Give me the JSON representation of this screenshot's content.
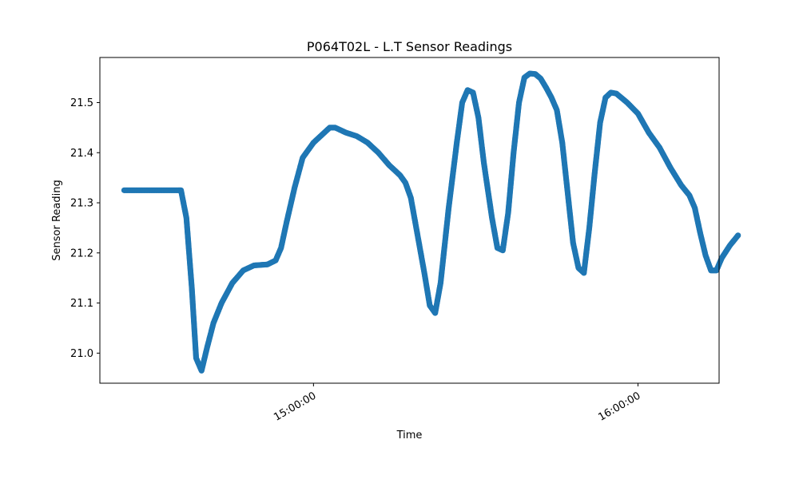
{
  "chart_data": {
    "type": "scatter",
    "title": "P064T02L - L.T Sensor Readings",
    "xlabel": "Time",
    "ylabel": "Sensor Reading",
    "x_ticks": [
      "15:00:00",
      "16:00:00"
    ],
    "y_ticks": [
      "21.0",
      "21.1",
      "21.2",
      "21.3",
      "21.4",
      "21.5"
    ],
    "x_unit": "minutes past 14:00",
    "xlim": [
      20.5,
      135
    ],
    "ylim": [
      20.94,
      21.59
    ],
    "grid": false,
    "legend": "none",
    "color": "#1f77b4",
    "series": [
      {
        "points": [
          [
            25,
            21.325
          ],
          [
            30,
            21.325
          ],
          [
            35,
            21.325
          ],
          [
            35.5,
            21.325
          ],
          [
            36.5,
            21.27
          ],
          [
            37.5,
            21.13
          ],
          [
            38.3,
            20.99
          ],
          [
            39.3,
            20.965
          ],
          [
            40.3,
            21.01
          ],
          [
            41.5,
            21.06
          ],
          [
            43,
            21.1
          ],
          [
            45,
            21.14
          ],
          [
            47,
            21.165
          ],
          [
            49,
            21.175
          ],
          [
            51.5,
            21.177
          ],
          [
            53,
            21.185
          ],
          [
            54,
            21.21
          ],
          [
            55,
            21.26
          ],
          [
            56.5,
            21.33
          ],
          [
            58,
            21.39
          ],
          [
            60,
            21.42
          ],
          [
            62,
            21.44
          ],
          [
            63,
            21.45
          ],
          [
            64,
            21.45
          ],
          [
            66,
            21.44
          ],
          [
            68,
            21.433
          ],
          [
            70,
            21.42
          ],
          [
            72,
            21.4
          ],
          [
            74,
            21.375
          ],
          [
            76,
            21.355
          ],
          [
            77,
            21.34
          ],
          [
            78,
            21.31
          ],
          [
            79,
            21.25
          ],
          [
            80.5,
            21.16
          ],
          [
            81.5,
            21.095
          ],
          [
            82.5,
            21.08
          ],
          [
            83.5,
            21.14
          ],
          [
            85,
            21.29
          ],
          [
            86.5,
            21.42
          ],
          [
            87.5,
            21.5
          ],
          [
            88.5,
            21.525
          ],
          [
            89.5,
            21.52
          ],
          [
            90.5,
            21.47
          ],
          [
            91.5,
            21.38
          ],
          [
            93,
            21.27
          ],
          [
            94,
            21.21
          ],
          [
            95,
            21.205
          ],
          [
            96,
            21.28
          ],
          [
            97,
            21.4
          ],
          [
            98,
            21.5
          ],
          [
            99,
            21.55
          ],
          [
            100,
            21.558
          ],
          [
            101,
            21.557
          ],
          [
            102,
            21.548
          ],
          [
            103,
            21.53
          ],
          [
            104,
            21.51
          ],
          [
            105,
            21.485
          ],
          [
            106,
            21.42
          ],
          [
            107,
            21.32
          ],
          [
            108,
            21.22
          ],
          [
            109,
            21.17
          ],
          [
            110,
            21.16
          ],
          [
            111,
            21.25
          ],
          [
            112,
            21.36
          ],
          [
            113,
            21.46
          ],
          [
            114,
            21.51
          ],
          [
            115,
            21.52
          ],
          [
            116,
            21.518
          ],
          [
            118,
            21.5
          ],
          [
            120,
            21.478
          ],
          [
            122,
            21.44
          ],
          [
            124,
            21.41
          ],
          [
            126,
            21.37
          ],
          [
            128,
            21.335
          ],
          [
            129.5,
            21.315
          ],
          [
            130.5,
            21.29
          ],
          [
            131.5,
            21.24
          ],
          [
            132.5,
            21.195
          ],
          [
            133.5,
            21.165
          ],
          [
            134.5,
            21.165
          ],
          [
            135.5,
            21.19
          ],
          [
            137,
            21.215
          ],
          [
            138.5,
            21.235
          ]
        ]
      }
    ]
  }
}
